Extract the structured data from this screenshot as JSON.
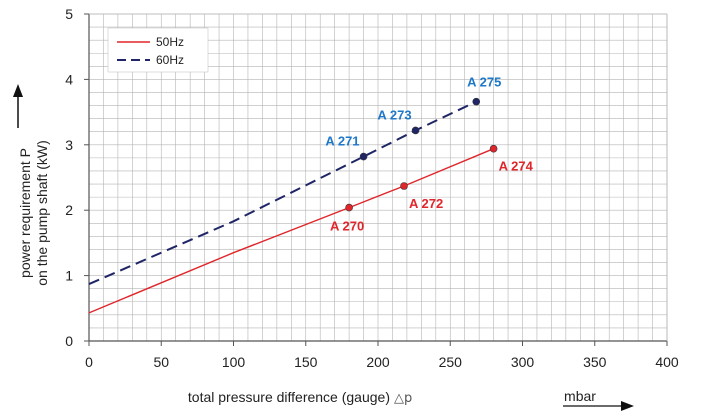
{
  "chart_data": {
    "type": "line",
    "title": "",
    "xlabel": "total pressure difference (gauge)",
    "xlabel_symbol": "△p",
    "xunit": "mbar",
    "ylabel_line1": "power requirement P",
    "ylabel_line2": "on the pump shaft (kW)",
    "xlim": [
      0,
      400
    ],
    "ylim": [
      0,
      5
    ],
    "x_ticks": [
      0,
      50,
      100,
      150,
      200,
      250,
      300,
      350,
      400
    ],
    "y_ticks": [
      0,
      1,
      2,
      3,
      4,
      5
    ],
    "x_tick_labels": [
      "0",
      "50",
      "100",
      "150",
      "200",
      "250",
      "300",
      "350",
      "400"
    ],
    "y_tick_labels": [
      "0",
      "1",
      "2",
      "3",
      "4",
      "5"
    ],
    "grid": true,
    "legend_position": "top-left",
    "series": [
      {
        "name": "50Hz",
        "style": "solid",
        "color": "#e0262b",
        "points": [
          [
            0,
            0.43
          ],
          [
            100,
            1.35
          ],
          [
            180,
            2.04
          ],
          [
            218,
            2.37
          ],
          [
            280,
            2.94
          ]
        ]
      },
      {
        "name": "60Hz",
        "style": "dashed",
        "color": "#1f2566",
        "points": [
          [
            0,
            0.87
          ],
          [
            100,
            1.83
          ],
          [
            190,
            2.82
          ],
          [
            226,
            3.22
          ],
          [
            268,
            3.66
          ]
        ]
      }
    ],
    "annotations": [
      {
        "text": "A 270",
        "x": 180,
        "y": 2.04,
        "color": "#e0262b",
        "pos": "below"
      },
      {
        "text": "A 272",
        "x": 218,
        "y": 2.37,
        "color": "#e0262b",
        "pos": "below-right"
      },
      {
        "text": "A 274",
        "x": 280,
        "y": 2.94,
        "color": "#e0262b",
        "pos": "below-right"
      },
      {
        "text": "A 271",
        "x": 190,
        "y": 2.82,
        "color": "#1e78c8",
        "pos": "above-left"
      },
      {
        "text": "A 273",
        "x": 226,
        "y": 3.22,
        "color": "#1e78c8",
        "pos": "above-left"
      },
      {
        "text": "A 275",
        "x": 268,
        "y": 3.66,
        "color": "#1e78c8",
        "pos": "above"
      }
    ],
    "colors": {
      "grid": "#b4b4b4",
      "axis": "#555555",
      "text": "#222222",
      "watermark": "#e15b5b"
    }
  }
}
